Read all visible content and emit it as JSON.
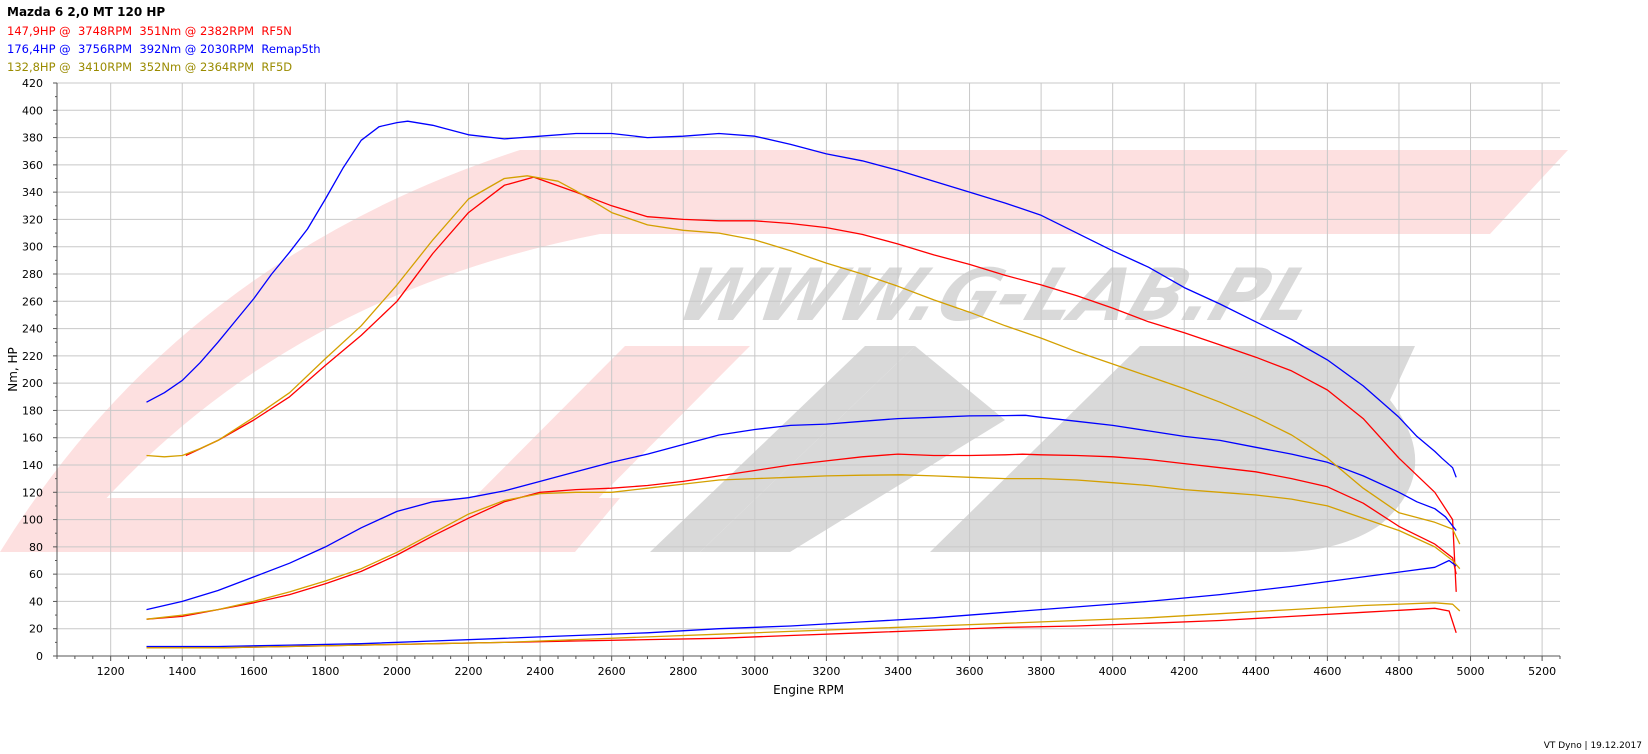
{
  "header": {
    "title": "Mazda 6 2,0 MT 120 HP",
    "lines": [
      {
        "text": "147,9HP @  3748RPM  351Nm @ 2382RPM  RF5N",
        "color": "#ff0000"
      },
      {
        "text": "176,4HP @  3756RPM  392Nm @ 2030RPM  Remap5th",
        "color": "#0000ff"
      },
      {
        "text": "132,8HP @  3410RPM  352Nm @ 2364RPM  RF5D",
        "color": "#9a8b00"
      }
    ]
  },
  "footer": "VT Dyno | 19.12.2017",
  "watermark": "WWW.G-LAB.PL",
  "chart_data": {
    "type": "line",
    "xlabel": "Engine RPM",
    "ylabel": "Nm, HP",
    "xlim": [
      1050,
      5250
    ],
    "ylim": [
      0,
      420
    ],
    "xticks": [
      1200,
      1400,
      1600,
      1800,
      2000,
      2200,
      2400,
      2600,
      2800,
      3000,
      3200,
      3400,
      3600,
      3800,
      4000,
      4200,
      4400,
      4600,
      4800,
      5000,
      5200
    ],
    "yticks": [
      0,
      20,
      40,
      60,
      80,
      100,
      120,
      140,
      160,
      180,
      200,
      220,
      240,
      260,
      280,
      300,
      320,
      340,
      360,
      380,
      400,
      420
    ],
    "grid": true,
    "series": [
      {
        "name": "RF5N",
        "kind": "torque",
        "color": "#ff0000",
        "x": [
          1410,
          1500,
          1600,
          1700,
          1800,
          1900,
          2000,
          2100,
          2200,
          2300,
          2382,
          2500,
          2600,
          2700,
          2800,
          2900,
          3000,
          3100,
          3200,
          3300,
          3400,
          3500,
          3600,
          3700,
          3800,
          3900,
          4000,
          4100,
          4200,
          4300,
          4400,
          4500,
          4600,
          4700,
          4800,
          4900,
          4950,
          4960
        ],
        "y": [
          147,
          158,
          173,
          190,
          213,
          235,
          260,
          295,
          325,
          345,
          351,
          340,
          330,
          322,
          320,
          319,
          319,
          317,
          314,
          309,
          302,
          294,
          287,
          279,
          272,
          264,
          255,
          245,
          237,
          228,
          219,
          209,
          195,
          174,
          145,
          120,
          100,
          47
        ]
      },
      {
        "name": "RF5N",
        "kind": "power",
        "color": "#ff0000",
        "x": [
          1300,
          1400,
          1500,
          1600,
          1700,
          1800,
          1900,
          2000,
          2100,
          2200,
          2300,
          2400,
          2500,
          2600,
          2700,
          2800,
          2900,
          3000,
          3100,
          3200,
          3300,
          3400,
          3500,
          3600,
          3700,
          3748,
          3800,
          3900,
          4000,
          4100,
          4200,
          4300,
          4400,
          4500,
          4600,
          4700,
          4800,
          4900,
          4950,
          4960
        ],
        "y": [
          27,
          29,
          34,
          39,
          45,
          53,
          62,
          74,
          88,
          101,
          113,
          120,
          122,
          123,
          125,
          128,
          132,
          136,
          140,
          143,
          146,
          148,
          147,
          147,
          147.5,
          147.9,
          147.5,
          147,
          146,
          144,
          141,
          138,
          135,
          130,
          124,
          112,
          95,
          82,
          72,
          60
        ]
      },
      {
        "name": "RF5N",
        "kind": "boost",
        "color": "#ff0000",
        "x": [
          1300,
          1500,
          1700,
          1900,
          2100,
          2300,
          2500,
          2700,
          2900,
          3100,
          3300,
          3500,
          3700,
          3900,
          4100,
          4300,
          4500,
          4700,
          4900,
          4940,
          4960
        ],
        "y": [
          6,
          6,
          7,
          8,
          9,
          10,
          11,
          12,
          13,
          15,
          17,
          19,
          21,
          22,
          24,
          26,
          29,
          32,
          35,
          33,
          17
        ]
      },
      {
        "name": "Remap5th",
        "kind": "torque",
        "color": "#0000ff",
        "x": [
          1300,
          1350,
          1400,
          1450,
          1500,
          1550,
          1600,
          1650,
          1700,
          1750,
          1800,
          1850,
          1900,
          1950,
          2000,
          2030,
          2100,
          2200,
          2300,
          2400,
          2500,
          2600,
          2700,
          2800,
          2900,
          3000,
          3100,
          3200,
          3300,
          3400,
          3500,
          3600,
          3700,
          3800,
          3900,
          4000,
          4100,
          4200,
          4300,
          4400,
          4500,
          4600,
          4700,
          4800,
          4850,
          4900,
          4920,
          4950,
          4960
        ],
        "y": [
          186,
          193,
          202,
          215,
          230,
          246,
          262,
          280,
          296,
          313,
          335,
          358,
          378,
          388,
          391,
          392,
          389,
          382,
          379,
          381,
          383,
          383,
          380,
          381,
          383,
          381,
          375,
          368,
          363,
          356,
          348,
          340,
          332,
          323,
          310,
          297,
          285,
          270,
          258,
          245,
          232,
          217,
          198,
          175,
          161,
          150,
          145,
          138,
          131
        ]
      },
      {
        "name": "Remap5th",
        "kind": "power",
        "color": "#0000ff",
        "x": [
          1300,
          1400,
          1500,
          1600,
          1700,
          1800,
          1900,
          2000,
          2100,
          2200,
          2300,
          2400,
          2500,
          2600,
          2700,
          2800,
          2900,
          3000,
          3100,
          3200,
          3300,
          3400,
          3500,
          3600,
          3700,
          3756,
          3800,
          3900,
          4000,
          4100,
          4200,
          4300,
          4400,
          4500,
          4600,
          4700,
          4800,
          4850,
          4900,
          4930,
          4960
        ],
        "y": [
          34,
          40,
          48,
          58,
          68,
          80,
          94,
          106,
          113,
          116,
          121,
          128,
          135,
          142,
          148,
          155,
          162,
          166,
          169,
          170,
          172,
          174,
          175,
          176,
          176.2,
          176.4,
          175,
          172,
          169,
          165,
          161,
          158,
          153,
          148,
          142,
          132,
          120,
          113,
          108,
          102,
          92
        ]
      },
      {
        "name": "Remap5th",
        "kind": "boost",
        "color": "#0000ff",
        "x": [
          1300,
          1500,
          1700,
          1900,
          2100,
          2300,
          2500,
          2700,
          2900,
          3100,
          3300,
          3500,
          3700,
          3900,
          4100,
          4300,
          4500,
          4700,
          4900,
          4940,
          4960
        ],
        "y": [
          7,
          7,
          8,
          9,
          11,
          13,
          15,
          17,
          20,
          22,
          25,
          28,
          32,
          36,
          40,
          45,
          51,
          58,
          65,
          70,
          66
        ]
      },
      {
        "name": "RF5D",
        "kind": "torque",
        "color": "#d4a000",
        "x": [
          1300,
          1350,
          1400,
          1450,
          1500,
          1600,
          1700,
          1800,
          1900,
          2000,
          2100,
          2200,
          2300,
          2364,
          2450,
          2500,
          2600,
          2700,
          2800,
          2900,
          3000,
          3100,
          3200,
          3300,
          3400,
          3500,
          3600,
          3700,
          3800,
          3900,
          4000,
          4100,
          4200,
          4300,
          4400,
          4500,
          4600,
          4700,
          4800,
          4900,
          4950,
          4970
        ],
        "y": [
          147,
          146,
          147,
          152,
          158,
          175,
          193,
          218,
          242,
          272,
          305,
          335,
          350,
          352,
          348,
          341,
          325,
          316,
          312,
          310,
          305,
          297,
          288,
          280,
          271,
          261,
          252,
          242,
          233,
          223,
          214,
          205,
          196,
          186,
          175,
          162,
          145,
          123,
          105,
          98,
          93,
          82
        ]
      },
      {
        "name": "RF5D",
        "kind": "power",
        "color": "#d4a000",
        "x": [
          1300,
          1400,
          1500,
          1600,
          1700,
          1800,
          1900,
          2000,
          2100,
          2200,
          2300,
          2400,
          2500,
          2600,
          2700,
          2800,
          2900,
          3000,
          3100,
          3200,
          3300,
          3410,
          3500,
          3600,
          3700,
          3800,
          3900,
          4000,
          4100,
          4200,
          4300,
          4400,
          4500,
          4600,
          4700,
          4800,
          4900,
          4950,
          4970
        ],
        "y": [
          27,
          30,
          34,
          40,
          47,
          55,
          64,
          76,
          90,
          104,
          114,
          119,
          120,
          120,
          123,
          126,
          129,
          130,
          131,
          132,
          132.5,
          132.8,
          132,
          131,
          130,
          130,
          129,
          127,
          125,
          122,
          120,
          118,
          115,
          110,
          101,
          92,
          80,
          70,
          64
        ]
      },
      {
        "name": "RF5D",
        "kind": "boost",
        "color": "#d4a000",
        "x": [
          1300,
          1500,
          1700,
          1900,
          2100,
          2300,
          2500,
          2700,
          2900,
          3100,
          3300,
          3500,
          3700,
          3900,
          4100,
          4300,
          4500,
          4700,
          4900,
          4950,
          4970
        ],
        "y": [
          6,
          6,
          7,
          8,
          9,
          10,
          12,
          14,
          16,
          18,
          20,
          22,
          24,
          26,
          28,
          31,
          34,
          37,
          39,
          38,
          33
        ]
      }
    ]
  }
}
